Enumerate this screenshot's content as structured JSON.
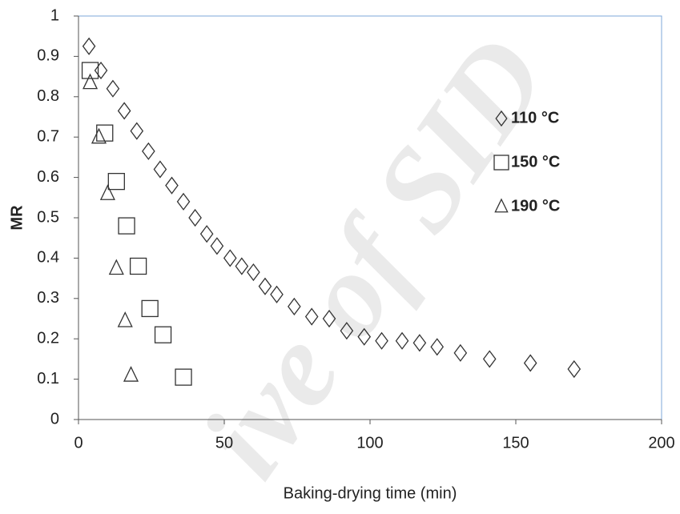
{
  "chart_data": {
    "type": "scatter",
    "xlabel": "Baking-drying time (min)",
    "ylabel": "MR",
    "watermark": "ive of SID",
    "xlim": [
      0,
      200
    ],
    "xticks": [
      0,
      50,
      100,
      150,
      200
    ],
    "ylim": [
      0,
      1
    ],
    "yticks": [
      0,
      0.1,
      0.2,
      0.3,
      0.4,
      0.5,
      0.6,
      0.7,
      0.8,
      0.9,
      1
    ],
    "series": [
      {
        "name": "110 °C",
        "marker": "diamond",
        "color": "#333333",
        "x": [
          3.6,
          7.7,
          11.8,
          15.7,
          20,
          24,
          28,
          32,
          36,
          40,
          44,
          47.5,
          52,
          56,
          60,
          64,
          68,
          74,
          80,
          86,
          92,
          98,
          104,
          111,
          117,
          123,
          131,
          141,
          155,
          170
        ],
        "values": [
          0.925,
          0.865,
          0.82,
          0.765,
          0.715,
          0.665,
          0.62,
          0.58,
          0.54,
          0.5,
          0.46,
          0.43,
          0.4,
          0.38,
          0.365,
          0.33,
          0.31,
          0.28,
          0.255,
          0.25,
          0.22,
          0.205,
          0.195,
          0.195,
          0.19,
          0.18,
          0.165,
          0.15,
          0.14,
          0.125
        ]
      },
      {
        "name": "150 °C",
        "marker": "square",
        "color": "#333333",
        "x": [
          4,
          9,
          13,
          16.5,
          20.5,
          24.5,
          29,
          36
        ],
        "values": [
          0.865,
          0.71,
          0.59,
          0.48,
          0.38,
          0.275,
          0.21,
          0.105
        ]
      },
      {
        "name": "190 °C",
        "marker": "triangle",
        "color": "#333333",
        "x": [
          4,
          7,
          10,
          13,
          16,
          18
        ],
        "values": [
          0.835,
          0.7,
          0.56,
          0.375,
          0.245,
          0.11
        ]
      }
    ]
  }
}
